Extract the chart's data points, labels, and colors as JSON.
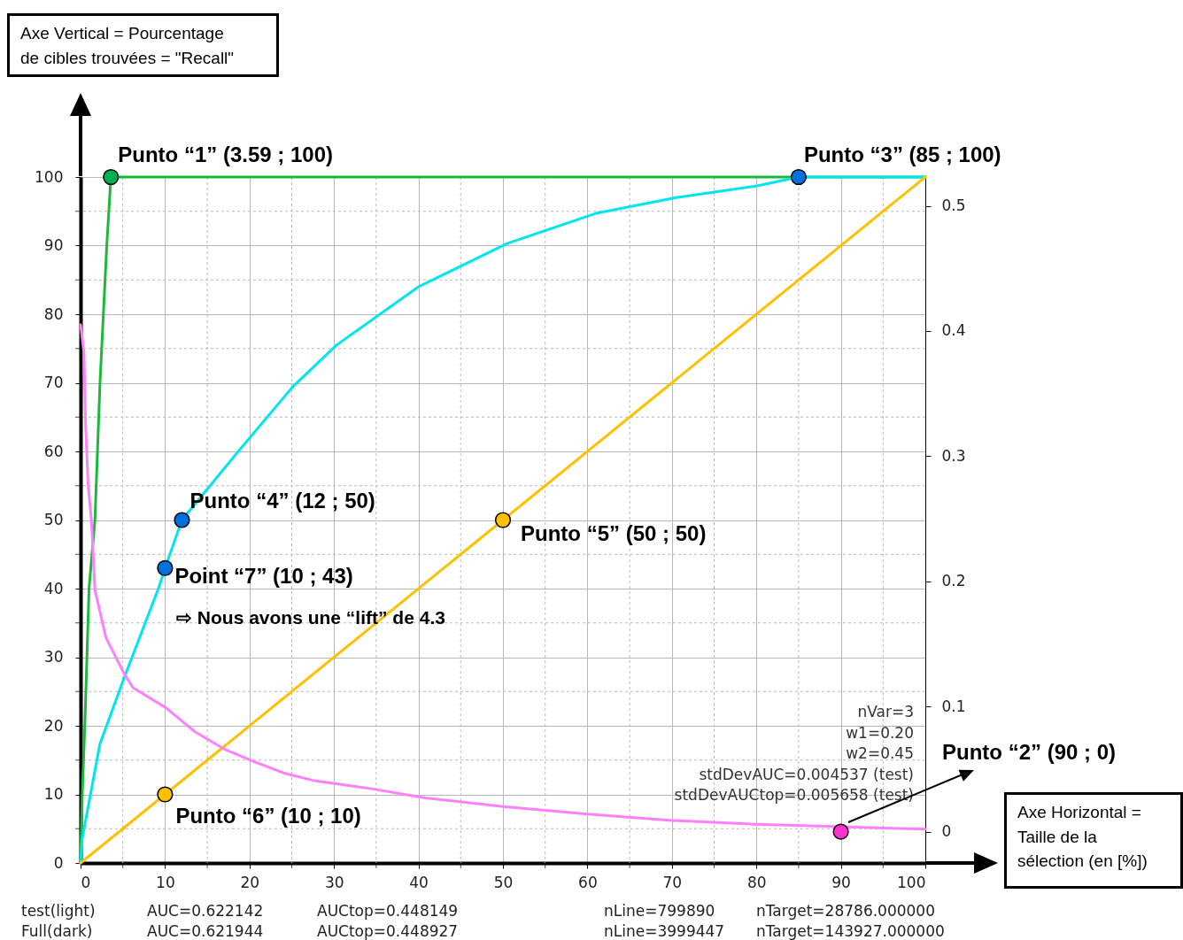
{
  "chart_data": {
    "type": "line",
    "xlim": [
      0,
      100
    ],
    "xticks": [
      0,
      {
        "value": 5,
        "label": null
      },
      10,
      {
        "value": 15,
        "label": null
      },
      20,
      {
        "value": 25,
        "label": null
      },
      30,
      {
        "value": 35,
        "label": null
      },
      40,
      {
        "value": 45,
        "label": null
      },
      50,
      {
        "value": 55,
        "label": null
      },
      60,
      {
        "value": 65,
        "label": null
      },
      70,
      {
        "value": 75,
        "label": null
      },
      80,
      {
        "value": 85,
        "label": null
      },
      90,
      {
        "value": 95,
        "label": null
      },
      100
    ],
    "ylim": [
      0,
      100
    ],
    "yticks": [
      0,
      {
        "value": 5,
        "label": null
      },
      10,
      {
        "value": 15,
        "label": null
      },
      20,
      {
        "value": 25,
        "label": null
      },
      30,
      {
        "value": 35,
        "label": null
      },
      40,
      {
        "value": 45,
        "label": null
      },
      50,
      {
        "value": 55,
        "label": null
      },
      60,
      {
        "value": 65,
        "label": null
      },
      70,
      {
        "value": 75,
        "label": null
      },
      80,
      {
        "value": 85,
        "label": null
      },
      90,
      {
        "value": 95,
        "label": null
      },
      100
    ],
    "y2lim": [
      -0.025,
      0.523
    ],
    "y2ticks": [
      0,
      0.1,
      0.2,
      0.3,
      0.4,
      0.5
    ],
    "grid": true,
    "series": [
      {
        "color": "#1cb83a",
        "x": [
          0,
          0.2,
          0.5,
          1.0,
          1.7,
          2.3,
          3.1,
          3.59,
          100
        ],
        "values": [
          0,
          10,
          20,
          40,
          50,
          70,
          90,
          100,
          100
        ]
      },
      {
        "color": "#00e5ee",
        "x": [
          0,
          0.2,
          2.3,
          5.1,
          9.3,
          10,
          12,
          18.4,
          25.1,
          30.3,
          40,
          50.5,
          61,
          70.5,
          80.1,
          85,
          100
        ],
        "values": [
          0,
          3.6,
          17.4,
          26.8,
          40.3,
          43,
          50,
          59.6,
          69.4,
          75.5,
          84,
          90.3,
          94.7,
          97,
          98.7,
          100,
          100
        ]
      },
      {
        "color": "#ffc000",
        "x": [
          0,
          100
        ],
        "values": [
          0,
          100
        ]
      },
      {
        "color": "#ff80ff",
        "axis": "y2",
        "x": [
          0,
          0.4,
          0.6,
          0.9,
          1.3,
          1.7,
          3.0,
          5.1,
          6.2,
          10.1,
          13.5,
          17.0,
          20.5,
          24.0,
          27.5,
          33.8,
          40.8,
          50,
          60,
          70,
          80,
          100
        ],
        "values": [
          0.405,
          0.383,
          0.324,
          0.277,
          0.247,
          0.193,
          0.155,
          0.127,
          0.115,
          0.099,
          0.08,
          0.066,
          0.056,
          0.047,
          0.041,
          0.035,
          0.027,
          0.02,
          0.014,
          0.009,
          0.006,
          0.002
        ]
      },
      {
        "type": "scatter",
        "marker": "circle",
        "x": [
          3.59,
          85,
          12,
          50,
          10,
          10
        ],
        "values": [
          100,
          100,
          50,
          50,
          43,
          10
        ],
        "colors": [
          "#00b050",
          "#0070dd",
          "#0070dd",
          "#ffc000",
          "#0070dd",
          "#ffc000"
        ]
      },
      {
        "type": "scatter",
        "marker": "circle",
        "axis": "y2",
        "x": [
          90
        ],
        "values": [
          0
        ],
        "colors": [
          "#ff33cc"
        ]
      }
    ],
    "annotations": [
      {
        "text": "Punto “1” (3.59 ; 100)",
        "x": 3.59,
        "y": 100
      },
      {
        "text": "Punto “3” (85 ; 100)",
        "x": 85,
        "y": 100
      },
      {
        "text": "Punto “4” (12 ; 50)",
        "x": 12,
        "y": 50
      },
      {
        "text": "Punto “5” (50 ; 50)",
        "x": 50,
        "y": 50
      },
      {
        "text": "Point “7” (10 ; 43)",
        "x": 10,
        "y": 43
      },
      {
        "text": "Punto “6” (10 ; 10)",
        "x": 10,
        "y": 10
      },
      "Punto “2” (90 ; 0)",
      "⇨ Nous avons une “lift” de 4.3",
      "Axe Vertical = Pourcentage\nde cibles trouvées = \"Recall\"",
      "Axe Horizontal =\nTaille de la\nsélection (en [%])",
      "nVar=3\nw1=0.20\nw2=0.45\nstdDevAUC=0.004537 (test)\nstdDevAUCtop=0.005658 (test)",
      "test(light)",
      "AUC=0.622142",
      "AUCtop=0.448149",
      "nLine=799890",
      "nTarget=28786.000000",
      "Full(dark)",
      "AUC=0.621944",
      "AUCtop=0.448927",
      "nLine=3999447",
      "nTarget=143927.000000"
    ]
  }
}
